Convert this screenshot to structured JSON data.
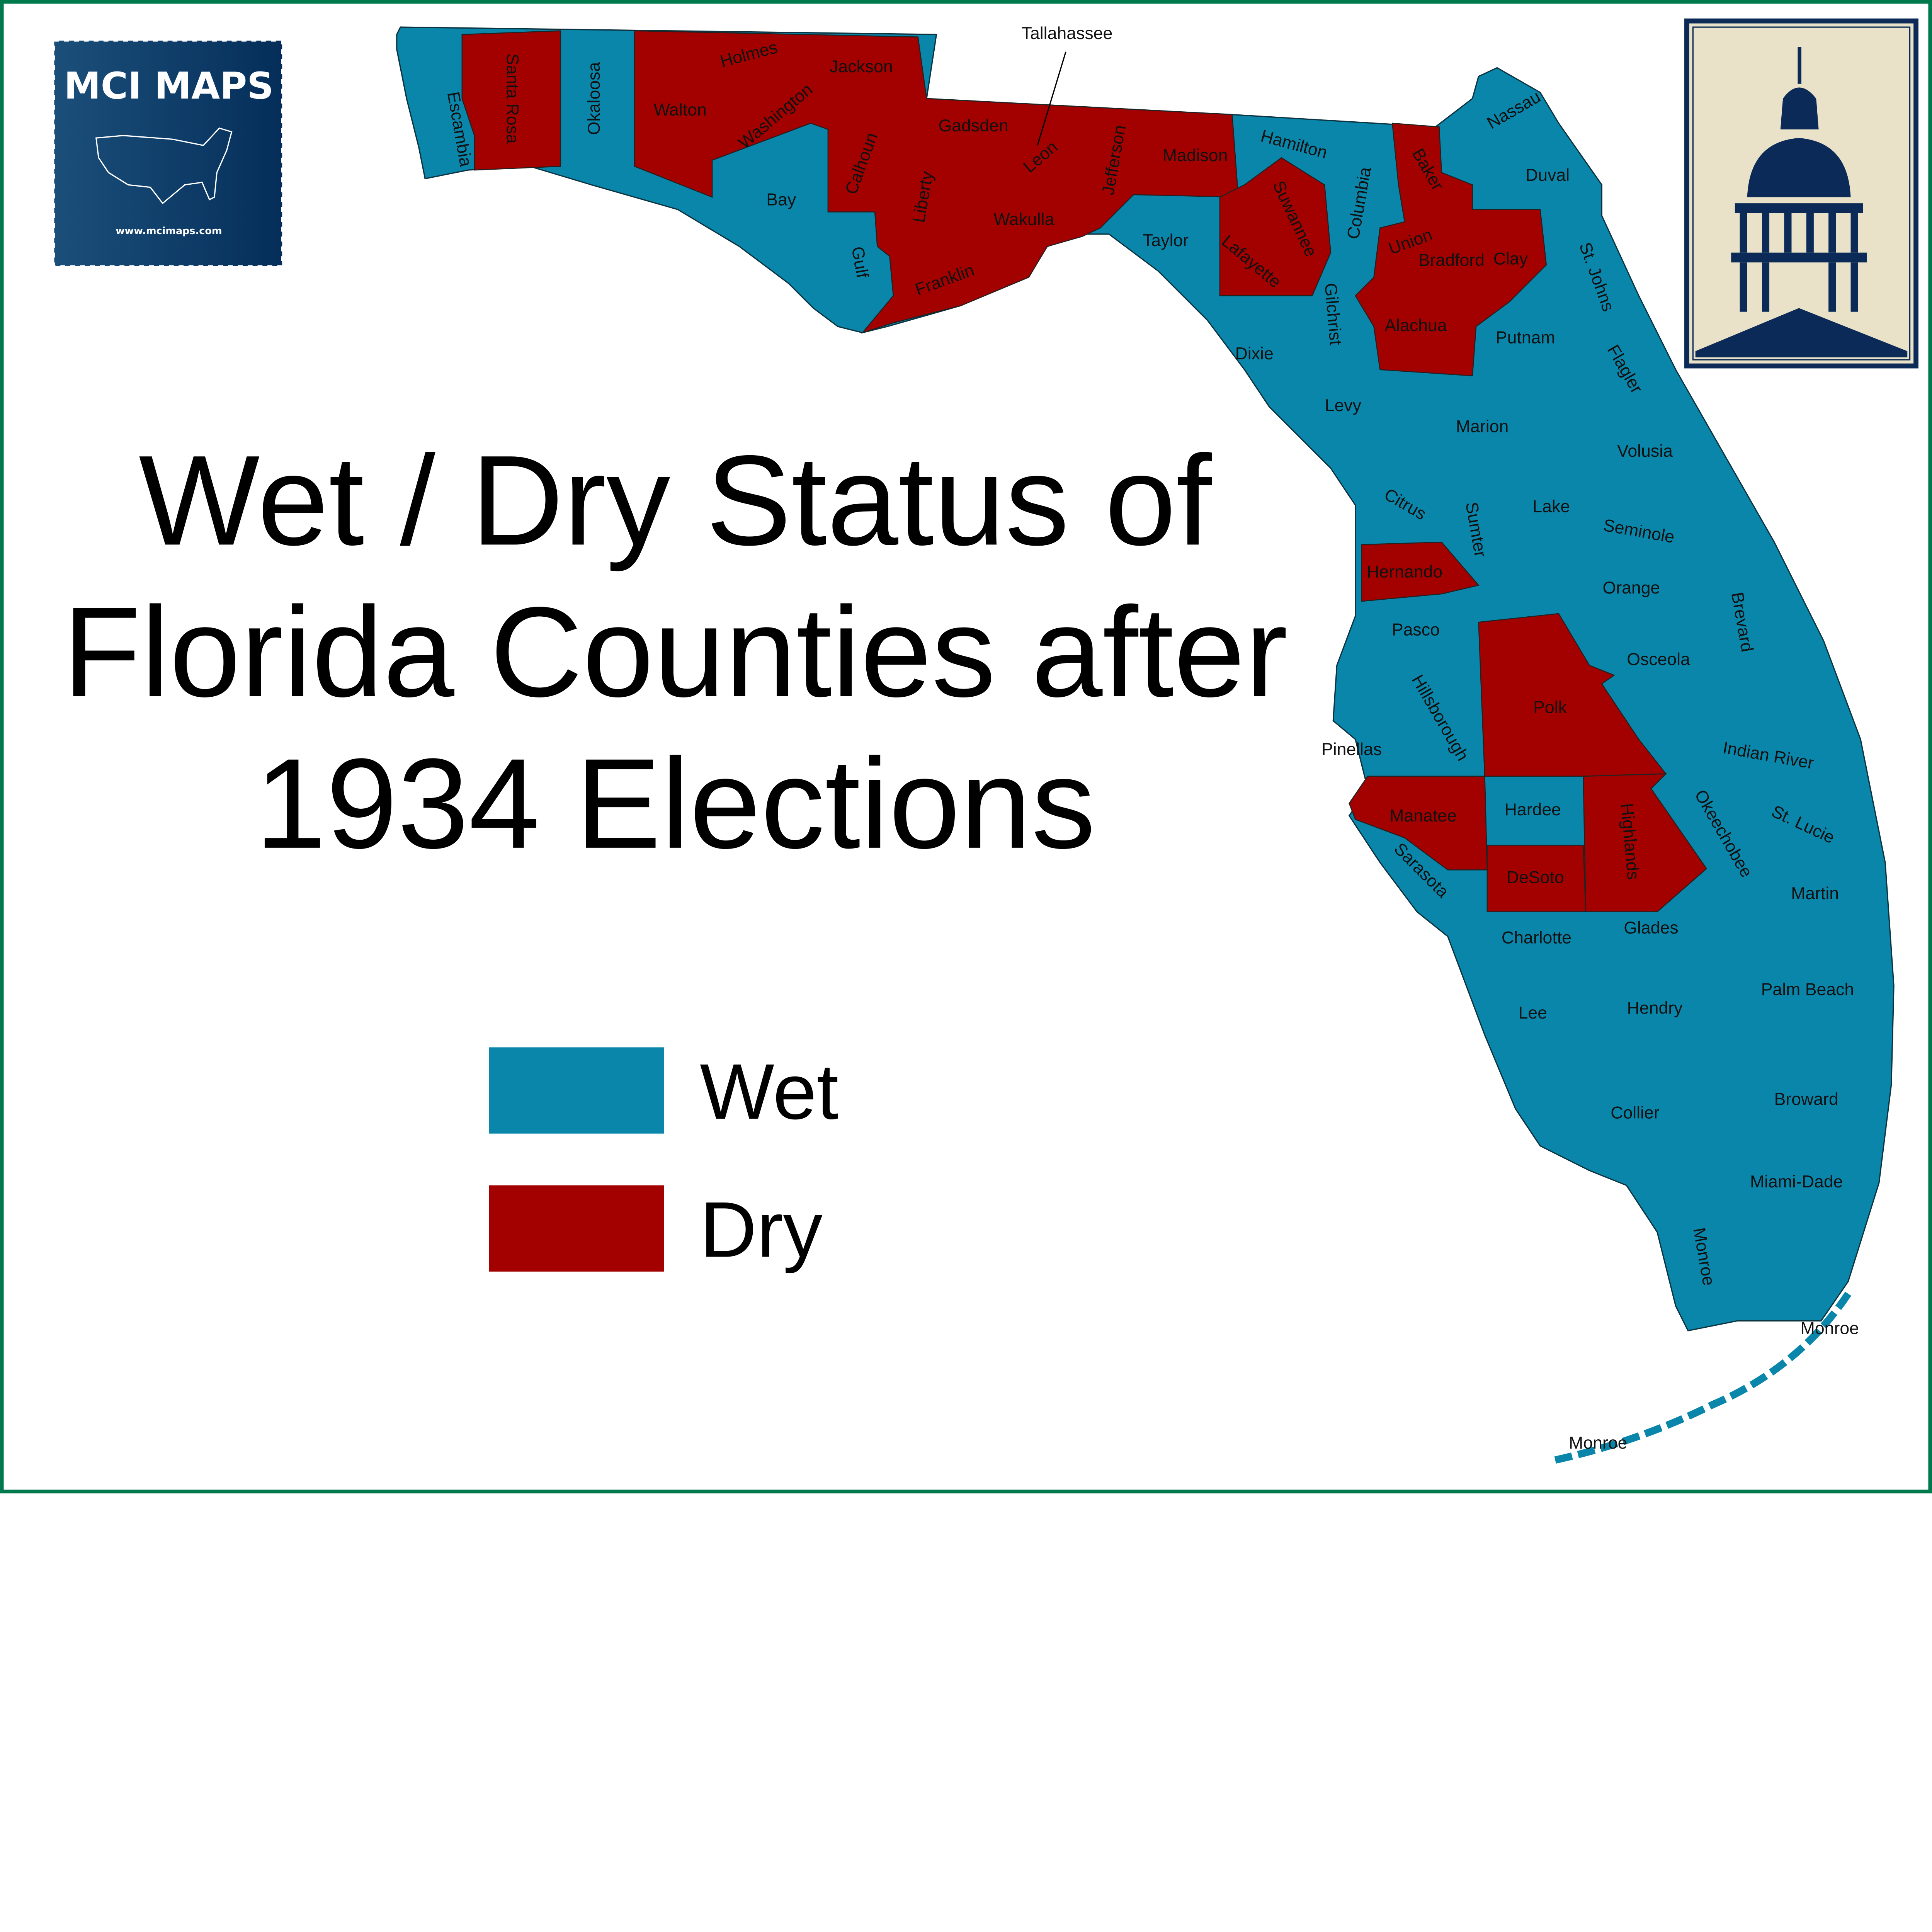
{
  "title": {
    "line1": "Wet / Dry Status of",
    "line2": "Florida Counties after",
    "line3": "1934 Elections"
  },
  "legend": [
    {
      "label": "Wet",
      "color": "#0a86ab"
    },
    {
      "label": "Dry",
      "color": "#a30000"
    }
  ],
  "colors": {
    "wet": "#0a86ab",
    "dry": "#a30000",
    "frame": "#007a4d",
    "logo_bg": "#053a66",
    "seal_bg": "#e9e2c9"
  },
  "logo": {
    "name": "MCI MAPS",
    "url": "www.mcimaps.com",
    "icon": "us-map-icon"
  },
  "seal": {
    "icon": "capitol-dome-icon"
  },
  "map": {
    "capital": "Tallahassee",
    "counties": [
      {
        "name": "Escambia",
        "status": "Wet"
      },
      {
        "name": "Santa Rosa",
        "status": "Dry"
      },
      {
        "name": "Okaloosa",
        "status": "Wet"
      },
      {
        "name": "Walton",
        "status": "Dry"
      },
      {
        "name": "Holmes",
        "status": "Dry"
      },
      {
        "name": "Jackson",
        "status": "Dry"
      },
      {
        "name": "Washington",
        "status": "Dry"
      },
      {
        "name": "Calhoun",
        "status": "Dry"
      },
      {
        "name": "Bay",
        "status": "Wet"
      },
      {
        "name": "Gulf",
        "status": "Wet"
      },
      {
        "name": "Liberty",
        "status": "Dry"
      },
      {
        "name": "Gadsden",
        "status": "Dry"
      },
      {
        "name": "Leon",
        "status": "Dry"
      },
      {
        "name": "Jefferson",
        "status": "Dry"
      },
      {
        "name": "Madison",
        "status": "Dry"
      },
      {
        "name": "Wakulla",
        "status": "Dry"
      },
      {
        "name": "Franklin",
        "status": "Dry"
      },
      {
        "name": "Taylor",
        "status": "Wet"
      },
      {
        "name": "Hamilton",
        "status": "Wet"
      },
      {
        "name": "Suwannee",
        "status": "Dry"
      },
      {
        "name": "Lafayette",
        "status": "Dry"
      },
      {
        "name": "Columbia",
        "status": "Wet"
      },
      {
        "name": "Baker",
        "status": "Dry"
      },
      {
        "name": "Nassau",
        "status": "Wet"
      },
      {
        "name": "Duval",
        "status": "Wet"
      },
      {
        "name": "Union",
        "status": "Dry"
      },
      {
        "name": "Bradford",
        "status": "Dry"
      },
      {
        "name": "Clay",
        "status": "Dry"
      },
      {
        "name": "St. Johns",
        "status": "Wet"
      },
      {
        "name": "Gilchrist",
        "status": "Wet"
      },
      {
        "name": "Alachua",
        "status": "Dry"
      },
      {
        "name": "Putnam",
        "status": "Wet"
      },
      {
        "name": "Dixie",
        "status": "Wet"
      },
      {
        "name": "Flagler",
        "status": "Wet"
      },
      {
        "name": "Levy",
        "status": "Wet"
      },
      {
        "name": "Marion",
        "status": "Wet"
      },
      {
        "name": "Volusia",
        "status": "Wet"
      },
      {
        "name": "Citrus",
        "status": "Wet"
      },
      {
        "name": "Sumter",
        "status": "Wet"
      },
      {
        "name": "Lake",
        "status": "Wet"
      },
      {
        "name": "Seminole",
        "status": "Wet"
      },
      {
        "name": "Orange",
        "status": "Wet"
      },
      {
        "name": "Brevard",
        "status": "Wet"
      },
      {
        "name": "Hernando",
        "status": "Dry"
      },
      {
        "name": "Pasco",
        "status": "Wet"
      },
      {
        "name": "Osceola",
        "status": "Wet"
      },
      {
        "name": "Hillsborough",
        "status": "Wet"
      },
      {
        "name": "Polk",
        "status": "Dry"
      },
      {
        "name": "Pinellas",
        "status": "Wet"
      },
      {
        "name": "Indian River",
        "status": "Wet"
      },
      {
        "name": "Manatee",
        "status": "Dry"
      },
      {
        "name": "Hardee",
        "status": "Wet"
      },
      {
        "name": "Highlands",
        "status": "Dry"
      },
      {
        "name": "Okeechobee",
        "status": "Wet"
      },
      {
        "name": "St. Lucie",
        "status": "Wet"
      },
      {
        "name": "Sarasota",
        "status": "Wet"
      },
      {
        "name": "DeSoto",
        "status": "Dry"
      },
      {
        "name": "Martin",
        "status": "Wet"
      },
      {
        "name": "Charlotte",
        "status": "Wet"
      },
      {
        "name": "Glades",
        "status": "Wet"
      },
      {
        "name": "Palm Beach",
        "status": "Wet"
      },
      {
        "name": "Lee",
        "status": "Wet"
      },
      {
        "name": "Hendry",
        "status": "Wet"
      },
      {
        "name": "Collier",
        "status": "Wet"
      },
      {
        "name": "Broward",
        "status": "Wet"
      },
      {
        "name": "Miami-Dade",
        "status": "Wet"
      },
      {
        "name": "Monroe",
        "status": "Wet"
      }
    ]
  }
}
